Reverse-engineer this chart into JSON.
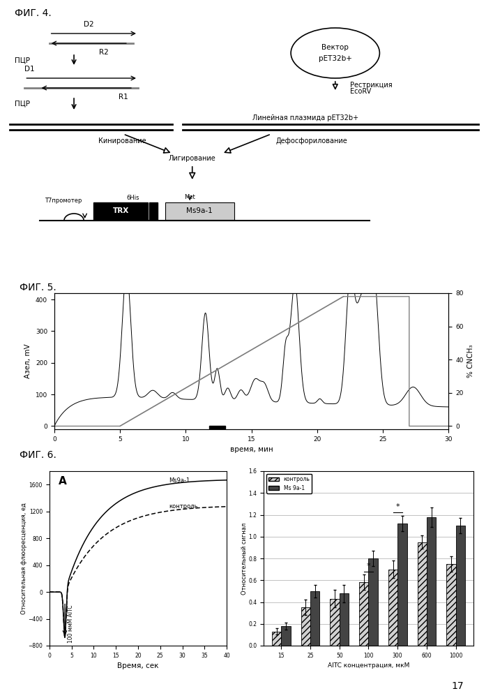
{
  "fig4_label": "ФИГ. 4.",
  "fig5_label": "ФИГ. 5.",
  "fig6_label": "ФИГ. 6.",
  "page_number": "17",
  "fig5_ylabel": "Aзел, mV",
  "fig5_ylabel2": "% CNCH₃",
  "fig5_xlabel": "время, мин",
  "fig5_xlim": [
    0,
    30
  ],
  "fig5_ylim": [
    0,
    420
  ],
  "fig6A_ylabel": "Относительная флюоресценция, ед",
  "fig6A_xlabel": "Время, сек",
  "fig6A_label_aitc": "100 ммМ AITC",
  "fig6A_label_ms9a1": "Ms9a-1",
  "fig6A_label_control": "контроль",
  "fig6A_xlim": [
    0,
    40
  ],
  "fig6A_ylim": [
    -800,
    1800
  ],
  "fig6B_ylabel": "Относительный сигнал",
  "fig6B_xlabel": "AITC концентрация, мкМ",
  "fig6B_ylim": [
    0,
    1.6
  ],
  "fig6B_legend_control": "контроль",
  "fig6B_legend_ms9a1": "Ms 9a-1",
  "fig6B_categories": [
    15,
    25,
    50,
    100,
    300,
    600,
    1000
  ],
  "fig6B_control_vals": [
    0.13,
    0.35,
    0.43,
    0.58,
    0.7,
    0.95,
    0.75
  ],
  "fig6B_ms9a1_vals": [
    0.18,
    0.5,
    0.48,
    0.8,
    1.12,
    1.18,
    1.1
  ],
  "fig6B_control_err": [
    0.03,
    0.07,
    0.08,
    0.07,
    0.08,
    0.06,
    0.07
  ],
  "fig6B_ms9a1_err": [
    0.03,
    0.06,
    0.08,
    0.07,
    0.07,
    0.09,
    0.07
  ],
  "bg_color": "#ffffff",
  "text_color": "#000000"
}
